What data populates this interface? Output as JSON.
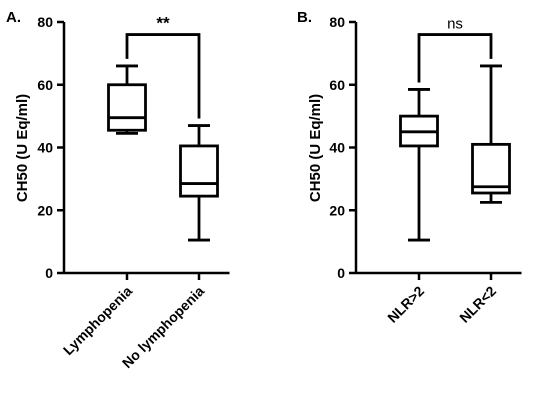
{
  "chart_data": [
    {
      "panel": "A.",
      "type": "box",
      "ylabel": "CH50 (U Eq/ml)",
      "ylim": [
        0,
        80
      ],
      "yticks": [
        0,
        20,
        40,
        60,
        80
      ],
      "categories": [
        "Lymphopenia",
        "No lymphopenia"
      ],
      "boxes": [
        {
          "category": "Lymphopenia",
          "min": 44.5,
          "q1": 45.5,
          "median": 49.5,
          "q3": 60.0,
          "max": 66.0
        },
        {
          "category": "No lymphopenia",
          "min": 10.5,
          "q1": 24.5,
          "median": 28.5,
          "q3": 40.5,
          "max": 47.0
        }
      ],
      "significance": {
        "label": "**",
        "between": [
          0,
          1
        ],
        "y": 76
      }
    },
    {
      "panel": "B.",
      "type": "box",
      "ylabel": "CH50 (U Eq/ml)",
      "ylim": [
        0,
        80
      ],
      "yticks": [
        0,
        20,
        40,
        60,
        80
      ],
      "categories": [
        "NLR>2",
        "NLR<2"
      ],
      "boxes": [
        {
          "category": "NLR>2",
          "min": 10.5,
          "q1": 40.5,
          "median": 45.0,
          "q3": 50.0,
          "max": 58.5
        },
        {
          "category": "NLR<2",
          "min": 22.5,
          "q1": 25.5,
          "median": 27.5,
          "q3": 41.0,
          "max": 66.0
        }
      ],
      "significance": {
        "label": "ns",
        "between": [
          0,
          1
        ],
        "y": 76
      }
    }
  ]
}
